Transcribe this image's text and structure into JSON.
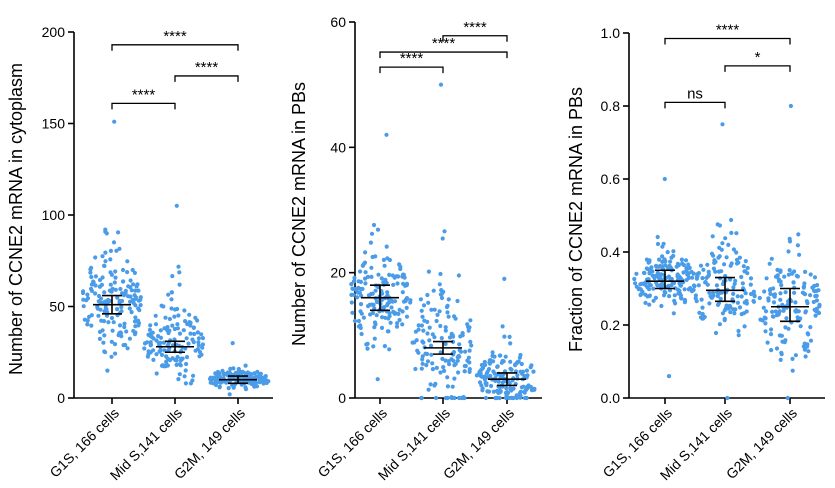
{
  "colors": {
    "points": "#4a9be8",
    "axes": "#000000",
    "background": "#ffffff"
  },
  "chart_data": [
    {
      "type": "scatter",
      "ylabel": "Number of CCNE2 mRNA in cytoplasm",
      "ylim": [
        0,
        200
      ],
      "yticks": [
        "0",
        "50",
        "100",
        "150",
        "200"
      ],
      "categories": [
        "G1S, 166 cells",
        "Mid S,141 cells",
        "G2M, 149 cells"
      ],
      "series": [
        {
          "n": 166,
          "mean": 51,
          "ci": [
            46,
            56
          ],
          "min": 15,
          "max": 151
        },
        {
          "n": 141,
          "mean": 28,
          "ci": [
            25,
            31
          ],
          "min": 8,
          "max": 105
        },
        {
          "n": 149,
          "mean": 10,
          "ci": [
            8,
            12
          ],
          "min": 2,
          "max": 30
        }
      ],
      "comparisons": [
        {
          "from": 0,
          "to": 1,
          "y": 161,
          "label": "****"
        },
        {
          "from": 1,
          "to": 2,
          "y": 176,
          "label": "****"
        },
        {
          "from": 0,
          "to": 2,
          "y": 193,
          "label": "****"
        }
      ]
    },
    {
      "type": "scatter",
      "ylabel": "Number of CCNE2 mRNA in PBs",
      "ylim": [
        0,
        60
      ],
      "yticks": [
        "0",
        "20",
        "40",
        "60"
      ],
      "categories": [
        "G1S, 166 cells",
        "Mid S,141 cells",
        "G2M, 149 cells"
      ],
      "series": [
        {
          "n": 166,
          "mean": 16,
          "ci": [
            14,
            18
          ],
          "min": 3,
          "max": 42
        },
        {
          "n": 141,
          "mean": 8,
          "ci": [
            7,
            9
          ],
          "min": 0,
          "max": 50
        },
        {
          "n": 149,
          "mean": 3,
          "ci": [
            2,
            4
          ],
          "min": 0,
          "max": 19
        }
      ],
      "comparisons": [
        {
          "from": 0,
          "to": 1,
          "y": 52.8,
          "label": "****"
        },
        {
          "from": 1,
          "to": 2,
          "y": 57.8,
          "label": "****"
        },
        {
          "from": 0,
          "to": 2,
          "y": 55.2,
          "label": "****"
        }
      ]
    },
    {
      "type": "scatter",
      "ylabel": "Fraction of CCNE2 mRNA in PBs",
      "ylim": [
        0,
        1.0
      ],
      "yticks": [
        "0.0",
        "0.2",
        "0.4",
        "0.6",
        "0.8",
        "1.0"
      ],
      "categories": [
        "G1S, 166 cells",
        "Mid S,141 cells",
        "G2M, 149 cells"
      ],
      "series": [
        {
          "n": 166,
          "mean": 0.32,
          "ci": [
            0.3,
            0.35
          ],
          "min": 0.06,
          "max": 0.6
        },
        {
          "n": 141,
          "mean": 0.295,
          "ci": [
            0.265,
            0.33
          ],
          "min": 0.0,
          "max": 0.75
        },
        {
          "n": 149,
          "mean": 0.25,
          "ci": [
            0.21,
            0.3
          ],
          "min": 0.0,
          "max": 0.8
        }
      ],
      "comparisons": [
        {
          "from": 0,
          "to": 1,
          "y": 0.81,
          "label": "ns"
        },
        {
          "from": 1,
          "to": 2,
          "y": 0.91,
          "label": "*"
        },
        {
          "from": 0,
          "to": 2,
          "y": 0.985,
          "label": "****"
        }
      ]
    }
  ]
}
